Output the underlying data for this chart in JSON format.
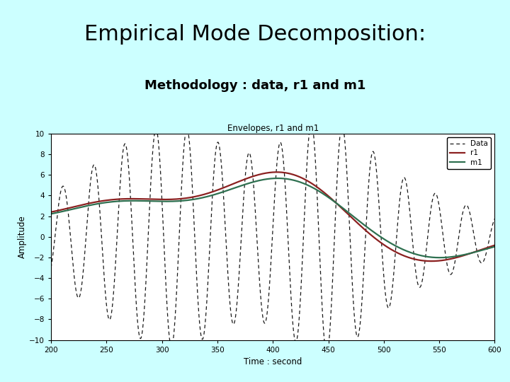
{
  "title_line1": "Empirical Mode Decomposition:",
  "title_line2": "Methodology : data, r1 and m1",
  "plot_title": "Envelopes, r1 and m1",
  "xlabel": "Time : second",
  "ylabel": "Amplitude",
  "xlim": [
    200,
    600
  ],
  "ylim": [
    -10,
    10
  ],
  "yticks": [
    -10,
    -8,
    -6,
    -4,
    -2,
    0,
    2,
    4,
    6,
    8,
    10
  ],
  "xticks": [
    200,
    250,
    300,
    350,
    400,
    450,
    500,
    550,
    600
  ],
  "bg_color": "#ccffff",
  "plot_bg": "#ffffff",
  "data_color": "black",
  "r1_color": "#8b2020",
  "m1_color": "#2e7050",
  "title1_fontsize": 22,
  "title2_fontsize": 13,
  "legend_labels": [
    "Data",
    "r1",
    "m1"
  ]
}
